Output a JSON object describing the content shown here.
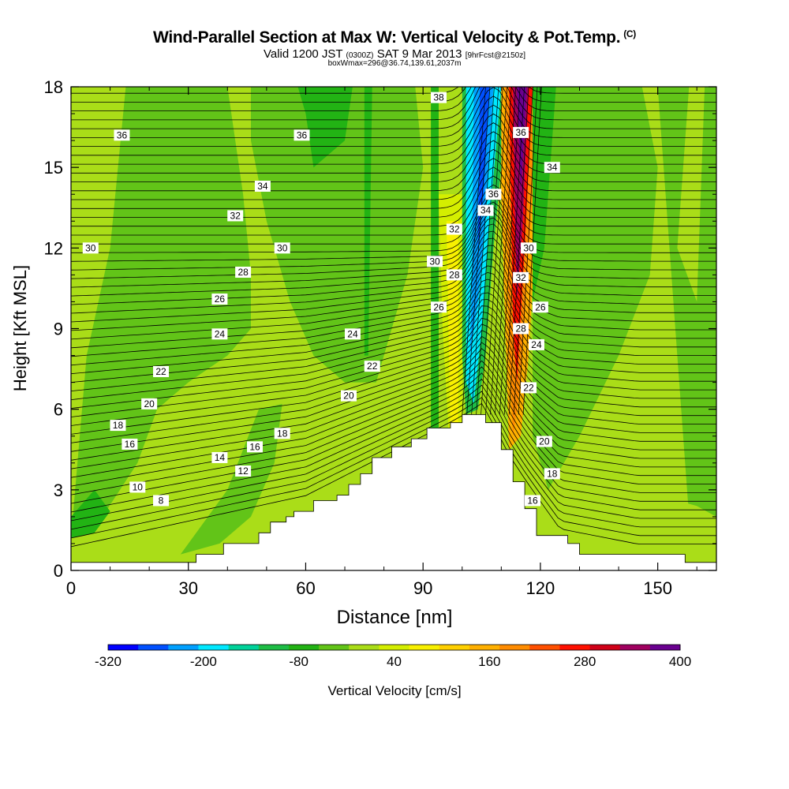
{
  "header": {
    "title": "Wind-Parallel Section at Max W: Vertical Velocity & Pot.Temp.",
    "copyright": "(C)",
    "valid_prefix": "Valid 1200 JST",
    "valid_utc": "(0300Z)",
    "valid_date": "SAT 9 Mar 2013",
    "forecast": "[9hrFcst@2150z]",
    "box_info": "boxWmax=296@36.74,139.61,2037m"
  },
  "chart_data": {
    "type": "heatmap",
    "xlabel": "Distance [nm]",
    "ylabel": "Height [Kft MSL]",
    "xlim": [
      0,
      165
    ],
    "ylim": [
      0,
      18
    ],
    "x_ticks": [
      0,
      30,
      60,
      90,
      120,
      150
    ],
    "y_ticks": [
      0,
      3,
      6,
      9,
      12,
      15,
      18
    ],
    "colorbar": {
      "label": "Vertical Velocity [cm/s]",
      "min": -320,
      "max": 400,
      "step": 40,
      "tick_labels": [
        "-320",
        "-200",
        "-80",
        "40",
        "160",
        "280",
        "400"
      ],
      "colors": [
        "#0000ff",
        "#0050ff",
        "#00a0ff",
        "#00e8ff",
        "#00d29a",
        "#1ebd45",
        "#22b314",
        "#62c418",
        "#aadd18",
        "#d4ee00",
        "#f8f000",
        "#ffd000",
        "#ffb000",
        "#ff8c00",
        "#ff5000",
        "#ff1000",
        "#d00018",
        "#a00060",
        "#6a0090"
      ]
    },
    "theta_contour_labels": [
      {
        "x": 13,
        "y": 16.2,
        "label": "36"
      },
      {
        "x": 59,
        "y": 16.2,
        "label": "36"
      },
      {
        "x": 94,
        "y": 17.6,
        "label": "38"
      },
      {
        "x": 115,
        "y": 16.3,
        "label": "36"
      },
      {
        "x": 108,
        "y": 14.0,
        "label": "36"
      },
      {
        "x": 123,
        "y": 15.0,
        "label": "34"
      },
      {
        "x": 49,
        "y": 14.3,
        "label": "34"
      },
      {
        "x": 106,
        "y": 13.4,
        "label": "34"
      },
      {
        "x": 42,
        "y": 13.2,
        "label": "32"
      },
      {
        "x": 98,
        "y": 12.7,
        "label": "32"
      },
      {
        "x": 115,
        "y": 10.9,
        "label": "32"
      },
      {
        "x": 5,
        "y": 12.0,
        "label": "30"
      },
      {
        "x": 54,
        "y": 12.0,
        "label": "30"
      },
      {
        "x": 93,
        "y": 11.5,
        "label": "30"
      },
      {
        "x": 117,
        "y": 12.0,
        "label": "30"
      },
      {
        "x": 44,
        "y": 11.1,
        "label": "28"
      },
      {
        "x": 98,
        "y": 11.0,
        "label": "28"
      },
      {
        "x": 115,
        "y": 9.0,
        "label": "28"
      },
      {
        "x": 38,
        "y": 10.1,
        "label": "26"
      },
      {
        "x": 94,
        "y": 9.8,
        "label": "26"
      },
      {
        "x": 120,
        "y": 9.8,
        "label": "26"
      },
      {
        "x": 38,
        "y": 8.8,
        "label": "24"
      },
      {
        "x": 72,
        "y": 8.8,
        "label": "24"
      },
      {
        "x": 119,
        "y": 8.4,
        "label": "24"
      },
      {
        "x": 23,
        "y": 7.4,
        "label": "22"
      },
      {
        "x": 77,
        "y": 7.6,
        "label": "22"
      },
      {
        "x": 117,
        "y": 6.8,
        "label": "22"
      },
      {
        "x": 20,
        "y": 6.2,
        "label": "20"
      },
      {
        "x": 71,
        "y": 6.5,
        "label": "20"
      },
      {
        "x": 121,
        "y": 4.8,
        "label": "20"
      },
      {
        "x": 12,
        "y": 5.4,
        "label": "18"
      },
      {
        "x": 54,
        "y": 5.1,
        "label": "18"
      },
      {
        "x": 123,
        "y": 3.6,
        "label": "18"
      },
      {
        "x": 15,
        "y": 4.7,
        "label": "16"
      },
      {
        "x": 47,
        "y": 4.6,
        "label": "16"
      },
      {
        "x": 118,
        "y": 2.6,
        "label": "16"
      },
      {
        "x": 38,
        "y": 4.2,
        "label": "14"
      },
      {
        "x": 44,
        "y": 3.7,
        "label": "12"
      },
      {
        "x": 17,
        "y": 3.1,
        "label": "10"
      },
      {
        "x": 23,
        "y": 2.6,
        "label": "8"
      }
    ],
    "terrain_top": [
      [
        0,
        0.3
      ],
      [
        32,
        0.3
      ],
      [
        32,
        0.6
      ],
      [
        39,
        0.6
      ],
      [
        39,
        1.0
      ],
      [
        48,
        1.0
      ],
      [
        48,
        1.4
      ],
      [
        51,
        1.4
      ],
      [
        51,
        1.8
      ],
      [
        55,
        1.8
      ],
      [
        55,
        2.0
      ],
      [
        57,
        2.0
      ],
      [
        57,
        2.2
      ],
      [
        62,
        2.2
      ],
      [
        62,
        2.6
      ],
      [
        68,
        2.6
      ],
      [
        68,
        2.8
      ],
      [
        71,
        2.8
      ],
      [
        71,
        3.2
      ],
      [
        74,
        3.2
      ],
      [
        74,
        3.6
      ],
      [
        77,
        3.6
      ],
      [
        77,
        4.2
      ],
      [
        82,
        4.2
      ],
      [
        82,
        4.6
      ],
      [
        87,
        4.6
      ],
      [
        87,
        4.9
      ],
      [
        91,
        4.9
      ],
      [
        91,
        5.3
      ],
      [
        97,
        5.3
      ],
      [
        97,
        5.5
      ],
      [
        100,
        5.5
      ],
      [
        100,
        5.8
      ],
      [
        106,
        5.8
      ],
      [
        106,
        5.5
      ],
      [
        110,
        5.5
      ],
      [
        110,
        4.5
      ],
      [
        113,
        4.5
      ],
      [
        113,
        3.3
      ],
      [
        116,
        3.3
      ],
      [
        116,
        2.3
      ],
      [
        119,
        2.3
      ],
      [
        119,
        1.3
      ],
      [
        127,
        1.3
      ],
      [
        127,
        1.0
      ],
      [
        130,
        1.0
      ],
      [
        130,
        0.6
      ],
      [
        157,
        0.6
      ],
      [
        157,
        0.3
      ],
      [
        165,
        0.3
      ]
    ],
    "updraft_max_cm_s": 296
  }
}
